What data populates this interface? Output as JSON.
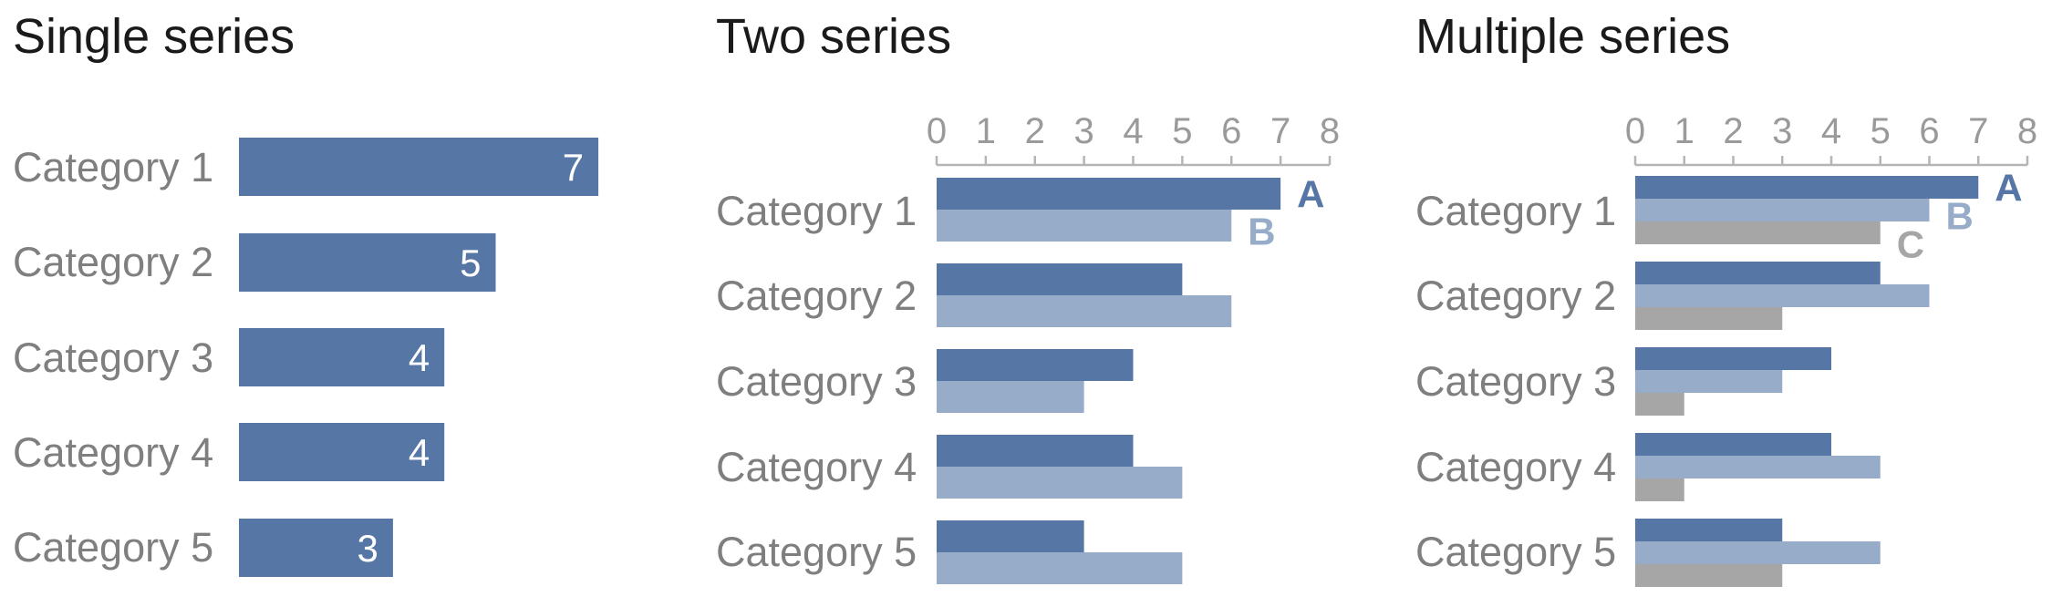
{
  "colors": {
    "A": "#5676a6",
    "B": "#97acc9",
    "C": "#a6a6a6",
    "axis": "#b5b5b5"
  },
  "chart_data": [
    {
      "type": "bar",
      "title": "Single series",
      "categories": [
        "Category 1",
        "Category 2",
        "Category 3",
        "Category 4",
        "Category 5"
      ],
      "series": [
        {
          "name": "",
          "values": [
            7,
            5,
            4,
            4,
            3
          ]
        }
      ],
      "value_labels": true,
      "xlim": [
        0,
        8
      ],
      "axis_visible": false,
      "legend": "none"
    },
    {
      "type": "bar",
      "title": "Two series",
      "categories": [
        "Category 1",
        "Category 2",
        "Category 3",
        "Category 4",
        "Category 5"
      ],
      "series": [
        {
          "name": "A",
          "values": [
            7,
            5,
            4,
            4,
            3
          ]
        },
        {
          "name": "B",
          "values": [
            6,
            6,
            3,
            5,
            5
          ]
        }
      ],
      "xlim": [
        0,
        8
      ],
      "xticks": [
        "0",
        "1",
        "2",
        "3",
        "4",
        "5",
        "6",
        "7",
        "8"
      ],
      "axis_position": "top",
      "legend": "direct-labels-on-first-category"
    },
    {
      "type": "bar",
      "title": "Multiple series",
      "categories": [
        "Category 1",
        "Category 2",
        "Category 3",
        "Category 4",
        "Category 5"
      ],
      "series": [
        {
          "name": "A",
          "values": [
            7,
            5,
            4,
            4,
            3
          ]
        },
        {
          "name": "B",
          "values": [
            6,
            6,
            3,
            5,
            5
          ]
        },
        {
          "name": "C",
          "values": [
            5,
            3,
            1,
            1,
            3
          ]
        }
      ],
      "xlim": [
        0,
        8
      ],
      "xticks": [
        "0",
        "1",
        "2",
        "3",
        "4",
        "5",
        "6",
        "7",
        "8"
      ],
      "axis_position": "top",
      "legend": "direct-labels-on-first-category"
    }
  ]
}
